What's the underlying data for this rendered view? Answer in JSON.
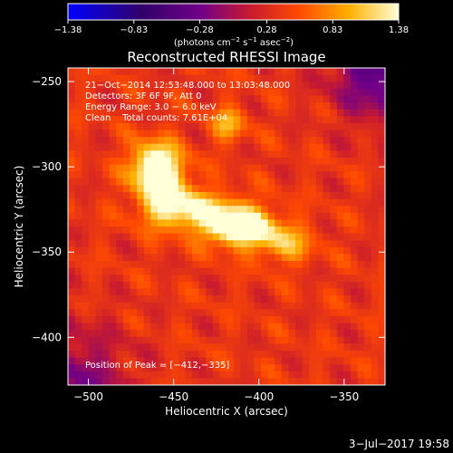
{
  "chart_data": {
    "type": "heatmap",
    "title": "Reconstructed RHESSI Image",
    "xlabel": "Heliocentric X (arcsec)",
    "ylabel": "Heliocentric Y (arcsec)",
    "xlim": [
      -512,
      -326
    ],
    "ylim": [
      -428,
      -242
    ],
    "x_ticks": [
      {
        "value": -500,
        "label": "−500"
      },
      {
        "value": -450,
        "label": "−450"
      },
      {
        "value": -400,
        "label": "−400"
      },
      {
        "value": -350,
        "label": "−350"
      }
    ],
    "y_ticks": [
      {
        "value": -250,
        "label": "−250"
      },
      {
        "value": -300,
        "label": "−300"
      },
      {
        "value": -350,
        "label": "−350"
      },
      {
        "value": -400,
        "label": "−400"
      }
    ],
    "colorbar": {
      "min": -1.38,
      "max": 1.38,
      "ticks": [
        {
          "value": -1.38,
          "label": "−1.38"
        },
        {
          "value": -0.83,
          "label": "−0.83"
        },
        {
          "value": -0.28,
          "label": "−0.28"
        },
        {
          "value": 0.28,
          "label": "0.28"
        },
        {
          "value": 0.83,
          "label": "0.83"
        },
        {
          "value": 1.38,
          "label": "1.38"
        }
      ],
      "unit_parts": [
        "(photons cm",
        "−2",
        " s",
        "−1",
        " asec",
        "−2",
        ")"
      ]
    },
    "annotations": [
      "21−Oct−2014 12:53:48.000 to 13:03:48.000",
      "Detectors: 3F 6F 9F, Att 0",
      "Energy Range: 3.0 − 6.0 keV",
      "Clean    Total counts: 7.61E+04"
    ],
    "peak_label": "Position of Peak = [−412,−335]",
    "peak": {
      "x": -412,
      "y": -335,
      "value": 1.38
    },
    "sources": [
      {
        "x": -412,
        "y": -335,
        "sx": 14,
        "sy": 8,
        "amp": 1.38
      },
      {
        "x": -462,
        "y": -300,
        "sx": 10,
        "sy": 10,
        "amp": 1.05
      },
      {
        "x": -440,
        "y": -325,
        "sx": 18,
        "sy": 8,
        "amp": 0.8
      },
      {
        "x": -455,
        "y": -312,
        "sx": 10,
        "sy": 14,
        "amp": 0.7
      },
      {
        "x": -385,
        "y": -345,
        "sx": 12,
        "sy": 8,
        "amp": 0.6
      },
      {
        "x": -418,
        "y": -275,
        "sx": 7,
        "sy": 7,
        "amp": 0.6
      }
    ],
    "background_level": 0.38
  },
  "footer_date": "3−Jul−2017 19:58"
}
